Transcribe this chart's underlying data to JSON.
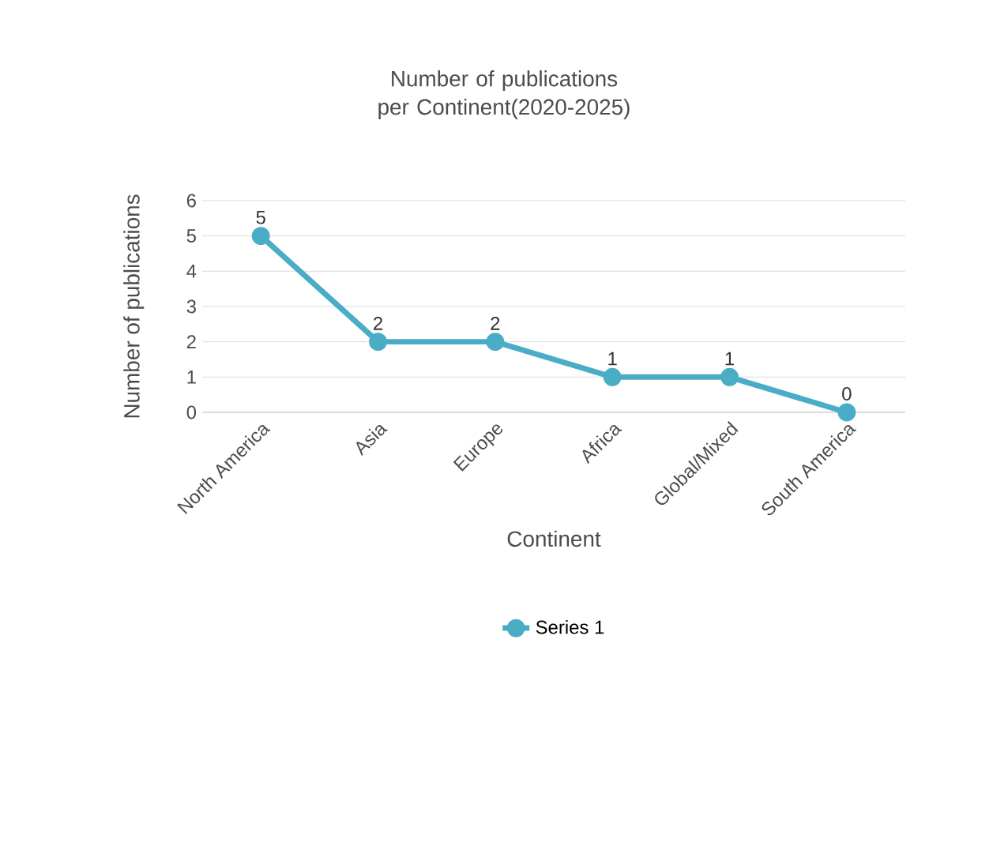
{
  "chart_data": {
    "type": "line",
    "title": "Number of publications per Continent(2020-2025)",
    "xlabel": "Continent",
    "ylabel": "Number of publications",
    "categories": [
      "North America",
      "Asia",
      "Europe",
      "Africa",
      "Global/Mixed",
      "South America"
    ],
    "series": [
      {
        "name": "Series 1",
        "color": "#4bacc6",
        "values": [
          5,
          2,
          2,
          1,
          1,
          0
        ]
      }
    ],
    "ylim": [
      0,
      6
    ],
    "yticks": [
      0,
      1,
      2,
      3,
      4,
      5,
      6
    ],
    "grid": "y",
    "legend": "bottom",
    "marker": "circle",
    "line_style": "solid",
    "data_labels": true
  }
}
